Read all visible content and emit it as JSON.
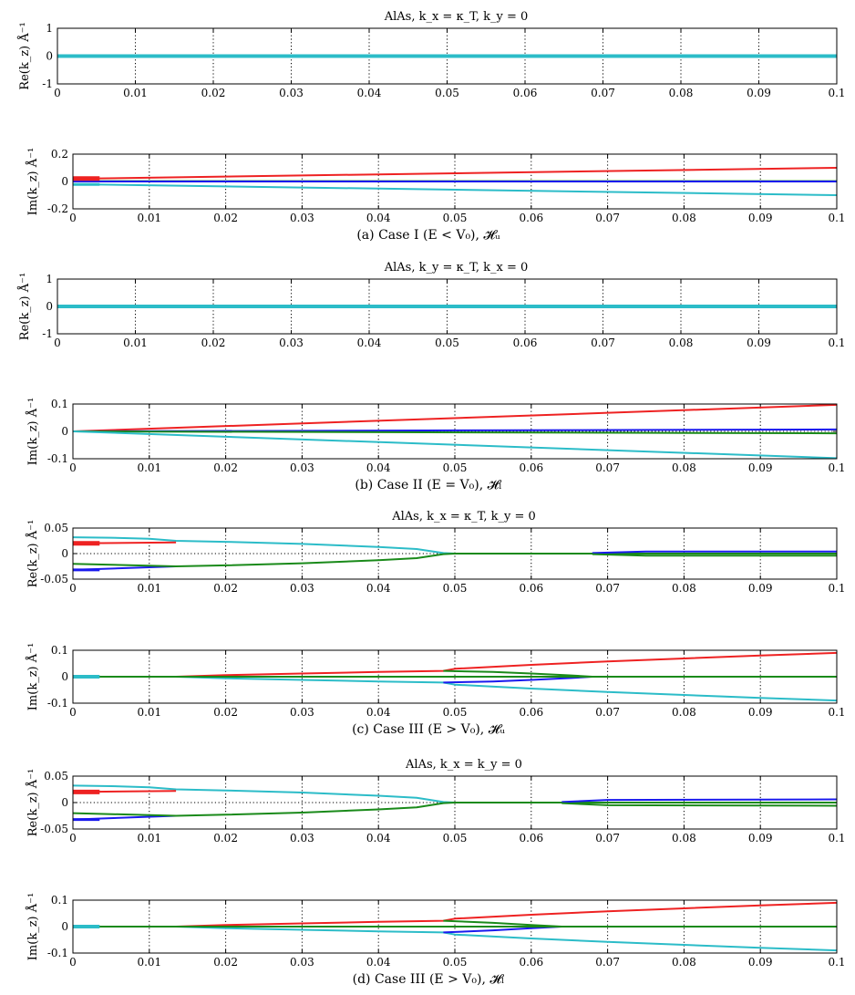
{
  "colors": {
    "red": "#ee2222",
    "blue": "#1a1aee",
    "green": "#1a8a1a",
    "cyan": "#2cbcc8"
  },
  "chart_data": [
    {
      "type": "line",
      "panel": "a-re",
      "title": "AlAs, k_x = κ_T, k_y = 0",
      "ylabel": "Re(k_z) Å⁻¹",
      "xlabel": "",
      "xlim": [
        0,
        0.1
      ],
      "ylim": [
        -1,
        1
      ],
      "x_ticks": [
        "0",
        "0.01",
        "0.02",
        "0.03",
        "0.04",
        "0.05",
        "0.06",
        "0.07",
        "0.08",
        "0.09",
        "0.1"
      ],
      "y_ticks": [
        {
          "v": 1,
          "t": "1"
        },
        {
          "v": 0,
          "t": "0"
        },
        {
          "v": -1,
          "t": "-1"
        }
      ],
      "grid": "x-dotted",
      "zero_line": true,
      "series": [
        {
          "color": "cyan",
          "x": [
            0,
            0.1
          ],
          "y": [
            0,
            0
          ],
          "width": 4
        }
      ]
    },
    {
      "type": "line",
      "panel": "a-im",
      "title": "",
      "ylabel": "Im(k_z) Å⁻¹",
      "xlabel": "",
      "caption": "(a) Case I (E < V₀), 𝓗ᵤ",
      "xlim": [
        0,
        0.1
      ],
      "ylim": [
        -0.2,
        0.2
      ],
      "x_ticks": [
        "0",
        "0.01",
        "0.02",
        "0.03",
        "0.04",
        "0.05",
        "0.06",
        "0.07",
        "0.08",
        "0.09",
        "0.1"
      ],
      "y_ticks": [
        {
          "v": 0.2,
          "t": "0.2"
        },
        {
          "v": 0,
          "t": "0"
        },
        {
          "v": -0.2,
          "t": "-0.2"
        }
      ],
      "grid": "x-dotted",
      "zero_line": true,
      "series": [
        {
          "color": "red",
          "x": [
            0,
            0.1
          ],
          "y": [
            0.02,
            0.1
          ]
        },
        {
          "color": "green",
          "x": [
            0,
            0.1
          ],
          "y": [
            0.003,
            0.003
          ]
        },
        {
          "color": "blue",
          "x": [
            0,
            0.1
          ],
          "y": [
            0,
            0
          ]
        },
        {
          "color": "cyan",
          "x": [
            0,
            0.1
          ],
          "y": [
            -0.02,
            -0.1
          ]
        },
        {
          "color": "red",
          "x": [
            0,
            0.0035
          ],
          "y": [
            0.022,
            0.022
          ],
          "width": 5
        },
        {
          "color": "cyan",
          "x": [
            0,
            0.0035
          ],
          "y": [
            -0.022,
            -0.022
          ],
          "width": 3
        }
      ]
    },
    {
      "type": "line",
      "panel": "b-re",
      "title": "AlAs, k_y = κ_T, k_x = 0",
      "ylabel": "Re(k_z) Å⁻¹",
      "xlabel": "",
      "xlim": [
        0,
        0.1
      ],
      "ylim": [
        -1,
        1
      ],
      "x_ticks": [
        "0",
        "0.01",
        "0.02",
        "0.03",
        "0.04",
        "0.05",
        "0.06",
        "0.07",
        "0.08",
        "0.09",
        "0.1"
      ],
      "y_ticks": [
        {
          "v": 1,
          "t": "1"
        },
        {
          "v": 0,
          "t": "0"
        },
        {
          "v": -1,
          "t": "-1"
        }
      ],
      "grid": "x-dotted",
      "zero_line": true,
      "series": [
        {
          "color": "cyan",
          "x": [
            0,
            0.1
          ],
          "y": [
            0,
            0
          ],
          "width": 4
        }
      ]
    },
    {
      "type": "line",
      "panel": "b-im",
      "title": "",
      "ylabel": "Im(k_z) Å⁻¹",
      "xlabel": "",
      "caption": "(b) Case II (E = V₀), 𝓗ₗ",
      "xlim": [
        0,
        0.1
      ],
      "ylim": [
        -0.1,
        0.1
      ],
      "x_ticks": [
        "0",
        "0.01",
        "0.02",
        "0.03",
        "0.04",
        "0.05",
        "0.06",
        "0.07",
        "0.08",
        "0.09",
        "0.1"
      ],
      "y_ticks": [
        {
          "v": 0.1,
          "t": "0.1"
        },
        {
          "v": 0,
          "t": "0"
        },
        {
          "v": -0.1,
          "t": "-0.1"
        }
      ],
      "grid": "x-dotted",
      "zero_line": true,
      "series": [
        {
          "color": "red",
          "x": [
            0,
            0.1
          ],
          "y": [
            0,
            0.097
          ]
        },
        {
          "color": "blue",
          "x": [
            0,
            0.1
          ],
          "y": [
            0,
            0.007
          ]
        },
        {
          "color": "green",
          "x": [
            0,
            0.1
          ],
          "y": [
            0,
            -0.007
          ]
        },
        {
          "color": "cyan",
          "x": [
            0,
            0.1
          ],
          "y": [
            0,
            -0.098
          ]
        }
      ]
    },
    {
      "type": "line",
      "panel": "c-re",
      "title": "AlAs, k_x = κ_T, k_y = 0",
      "ylabel": "Re(k_z) Å⁻¹",
      "xlabel": "",
      "xlim": [
        0,
        0.1
      ],
      "ylim": [
        -0.05,
        0.05
      ],
      "x_ticks": [
        "0",
        "0.01",
        "0.02",
        "0.03",
        "0.04",
        "0.05",
        "0.06",
        "0.07",
        "0.08",
        "0.09",
        "0.1"
      ],
      "y_ticks": [
        {
          "v": 0.05,
          "t": "0.05"
        },
        {
          "v": 0,
          "t": "0"
        },
        {
          "v": -0.05,
          "t": "-0.05"
        }
      ],
      "grid": "x-dotted",
      "zero_line": true,
      "series": [
        {
          "color": "cyan",
          "x": [
            0,
            0.005,
            0.01,
            0.0135,
            0.02,
            0.03,
            0.04,
            0.045,
            0.0485,
            0.05,
            0.1
          ],
          "y": [
            0.032,
            0.031,
            0.029,
            0.025,
            0.023,
            0.019,
            0.013,
            0.009,
            0.001,
            0,
            0
          ]
        },
        {
          "color": "red",
          "x": [
            0,
            0.0135
          ],
          "y": [
            0.02,
            0.022
          ]
        },
        {
          "color": "blue",
          "x": [
            0,
            0.0135
          ],
          "y": [
            -0.032,
            -0.025
          ]
        },
        {
          "color": "green",
          "x": [
            0,
            0.0135,
            0.02,
            0.03,
            0.04,
            0.045,
            0.0485,
            0.05,
            0.1
          ],
          "y": [
            -0.02,
            -0.025,
            -0.023,
            -0.019,
            -0.013,
            -0.009,
            -0.001,
            0,
            0
          ]
        },
        {
          "color": "blue",
          "x": [
            0.068,
            0.075,
            0.1
          ],
          "y": [
            0.001,
            0.004,
            0.004
          ]
        },
        {
          "color": "green",
          "x": [
            0.068,
            0.075,
            0.1
          ],
          "y": [
            -0.001,
            -0.004,
            -0.004
          ]
        },
        {
          "color": "red",
          "x": [
            0,
            0.0035
          ],
          "y": [
            0.02,
            0.02
          ],
          "width": 5
        },
        {
          "color": "blue",
          "x": [
            0,
            0.0035
          ],
          "y": [
            -0.032,
            -0.032
          ],
          "width": 3
        }
      ]
    },
    {
      "type": "line",
      "panel": "c-im",
      "title": "",
      "ylabel": "Im(k_z) Å⁻¹",
      "xlabel": "",
      "caption": "(c) Case III (E > V₀), 𝓗ᵤ",
      "xlim": [
        0,
        0.1
      ],
      "ylim": [
        -0.1,
        0.1
      ],
      "x_ticks": [
        "0",
        "0.01",
        "0.02",
        "0.03",
        "0.04",
        "0.05",
        "0.06",
        "0.07",
        "0.08",
        "0.09",
        "0.1"
      ],
      "y_ticks": [
        {
          "v": 0.1,
          "t": "0.1"
        },
        {
          "v": 0,
          "t": "0"
        },
        {
          "v": -0.1,
          "t": "-0.1"
        }
      ],
      "grid": "x-dotted",
      "zero_line": true,
      "series": [
        {
          "color": "red",
          "x": [
            0,
            0.0135,
            0.02,
            0.03,
            0.04,
            0.0485,
            0.05,
            0.06,
            0.07,
            0.08,
            0.09,
            0.1
          ],
          "y": [
            0,
            0,
            0.006,
            0.012,
            0.018,
            0.022,
            0.03,
            0.045,
            0.058,
            0.069,
            0.08,
            0.09
          ]
        },
        {
          "color": "cyan",
          "x": [
            0,
            0.0135,
            0.02,
            0.03,
            0.04,
            0.0485,
            0.05,
            0.06,
            0.07,
            0.08,
            0.09,
            0.1
          ],
          "y": [
            0,
            0,
            -0.006,
            -0.012,
            -0.018,
            -0.022,
            -0.03,
            -0.045,
            -0.058,
            -0.069,
            -0.08,
            -0.09
          ]
        },
        {
          "color": "blue",
          "x": [
            0.0485,
            0.055,
            0.06,
            0.065,
            0.068
          ],
          "y": [
            -0.022,
            -0.018,
            -0.012,
            -0.005,
            0
          ]
        },
        {
          "color": "green",
          "x": [
            0.0485,
            0.055,
            0.06,
            0.065,
            0.068
          ],
          "y": [
            0.022,
            0.018,
            0.012,
            0.005,
            0
          ]
        },
        {
          "color": "green",
          "x": [
            0,
            0.1
          ],
          "y": [
            0,
            0
          ]
        },
        {
          "color": "cyan",
          "x": [
            0,
            0.0035
          ],
          "y": [
            0,
            0
          ],
          "width": 4
        }
      ]
    },
    {
      "type": "line",
      "panel": "d-re",
      "title": "AlAs, k_x = k_y = 0",
      "ylabel": "Re(k_z) Å⁻¹",
      "xlabel": "",
      "xlim": [
        0,
        0.1
      ],
      "ylim": [
        -0.05,
        0.05
      ],
      "x_ticks": [
        "0",
        "0.01",
        "0.02",
        "0.03",
        "0.04",
        "0.05",
        "0.06",
        "0.07",
        "0.08",
        "0.09",
        "0.1"
      ],
      "y_ticks": [
        {
          "v": 0.05,
          "t": "0.05"
        },
        {
          "v": 0,
          "t": "0"
        },
        {
          "v": -0.05,
          "t": "-0.05"
        }
      ],
      "grid": "x-dotted",
      "zero_line": true,
      "series": [
        {
          "color": "cyan",
          "x": [
            0,
            0.005,
            0.01,
            0.0135,
            0.02,
            0.03,
            0.04,
            0.045,
            0.0485,
            0.05,
            0.1
          ],
          "y": [
            0.032,
            0.031,
            0.029,
            0.025,
            0.023,
            0.019,
            0.013,
            0.009,
            0.001,
            0,
            0
          ]
        },
        {
          "color": "red",
          "x": [
            0,
            0.0135
          ],
          "y": [
            0.02,
            0.022
          ]
        },
        {
          "color": "blue",
          "x": [
            0,
            0.0135
          ],
          "y": [
            -0.032,
            -0.025
          ]
        },
        {
          "color": "green",
          "x": [
            0,
            0.0135,
            0.02,
            0.03,
            0.04,
            0.045,
            0.0485,
            0.05,
            0.1
          ],
          "y": [
            -0.02,
            -0.025,
            -0.023,
            -0.019,
            -0.013,
            -0.009,
            -0.001,
            0,
            0
          ]
        },
        {
          "color": "blue",
          "x": [
            0.064,
            0.07,
            0.1
          ],
          "y": [
            0.001,
            0.005,
            0.006
          ]
        },
        {
          "color": "green",
          "x": [
            0.064,
            0.07,
            0.1
          ],
          "y": [
            -0.001,
            -0.005,
            -0.006
          ]
        },
        {
          "color": "red",
          "x": [
            0,
            0.0035
          ],
          "y": [
            0.02,
            0.02
          ],
          "width": 5
        },
        {
          "color": "blue",
          "x": [
            0,
            0.0035
          ],
          "y": [
            -0.032,
            -0.032
          ],
          "width": 3
        }
      ]
    },
    {
      "type": "line",
      "panel": "d-im",
      "title": "",
      "ylabel": "Im(k_z) Å⁻¹",
      "xlabel": "",
      "caption": "(d) Case III (E > V₀), 𝓗ₗ",
      "xlim": [
        0,
        0.1
      ],
      "ylim": [
        -0.1,
        0.1
      ],
      "x_ticks": [
        "0",
        "0.01",
        "0.02",
        "0.03",
        "0.04",
        "0.05",
        "0.06",
        "0.07",
        "0.08",
        "0.09",
        "0.1"
      ],
      "y_ticks": [
        {
          "v": 0.1,
          "t": "0.1"
        },
        {
          "v": 0,
          "t": "0"
        },
        {
          "v": -0.1,
          "t": "-0.1"
        }
      ],
      "grid": "x-dotted",
      "zero_line": true,
      "series": [
        {
          "color": "red",
          "x": [
            0,
            0.0135,
            0.02,
            0.03,
            0.04,
            0.0485,
            0.05,
            0.06,
            0.07,
            0.08,
            0.09,
            0.1
          ],
          "y": [
            0,
            0,
            0.006,
            0.012,
            0.018,
            0.022,
            0.03,
            0.045,
            0.058,
            0.069,
            0.08,
            0.09
          ]
        },
        {
          "color": "cyan",
          "x": [
            0,
            0.0135,
            0.02,
            0.03,
            0.04,
            0.0485,
            0.05,
            0.06,
            0.07,
            0.08,
            0.09,
            0.1
          ],
          "y": [
            0,
            0,
            -0.006,
            -0.012,
            -0.018,
            -0.022,
            -0.03,
            -0.045,
            -0.058,
            -0.069,
            -0.08,
            -0.09
          ]
        },
        {
          "color": "blue",
          "x": [
            0.0485,
            0.055,
            0.06,
            0.064
          ],
          "y": [
            -0.022,
            -0.014,
            -0.006,
            0
          ]
        },
        {
          "color": "green",
          "x": [
            0.0485,
            0.055,
            0.06,
            0.064
          ],
          "y": [
            0.022,
            0.014,
            0.006,
            0
          ]
        },
        {
          "color": "green",
          "x": [
            0,
            0.1
          ],
          "y": [
            0,
            0
          ]
        },
        {
          "color": "cyan",
          "x": [
            0,
            0.0035
          ],
          "y": [
            0,
            0
          ],
          "width": 4
        }
      ]
    }
  ]
}
